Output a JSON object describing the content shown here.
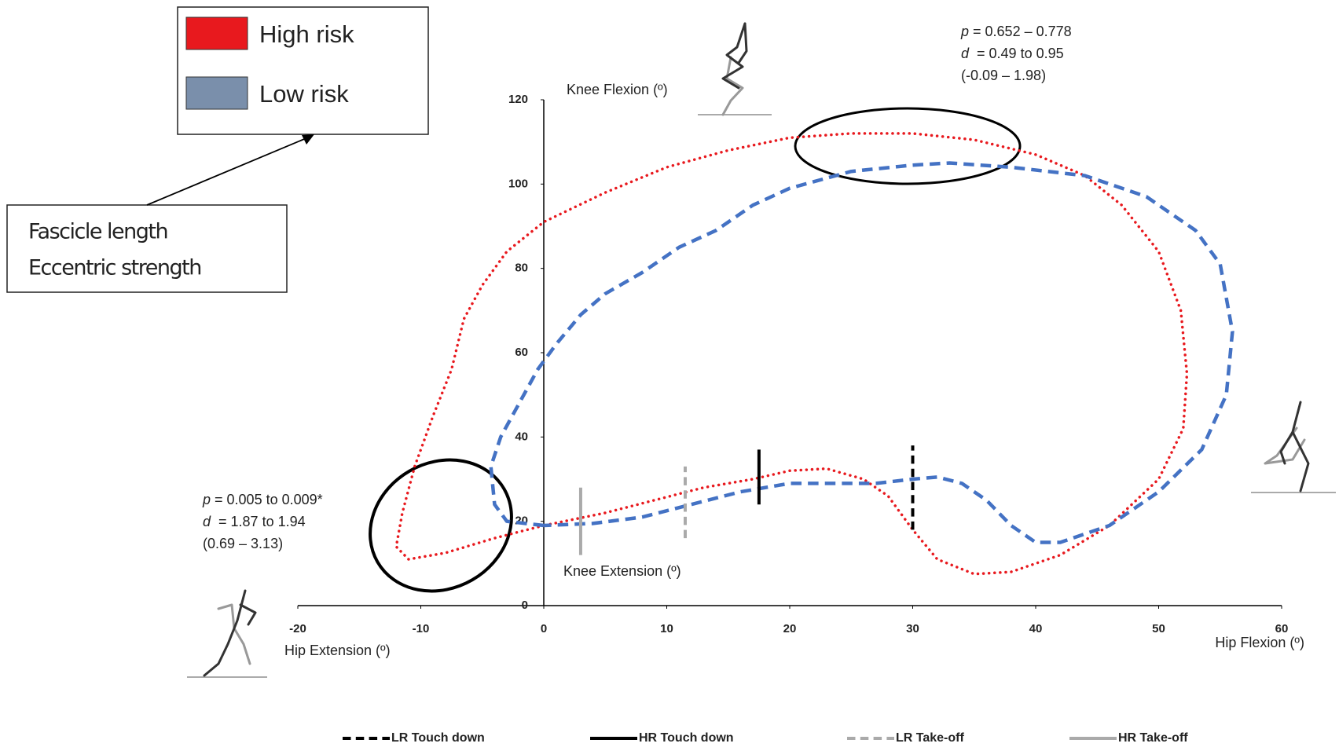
{
  "chart_data": {
    "type": "line",
    "xlim": [
      -20,
      60
    ],
    "xticks": [
      -20,
      -10,
      0,
      10,
      20,
      30,
      40,
      50,
      60
    ],
    "ylim": [
      0,
      120
    ],
    "yticks": [
      0,
      20,
      40,
      60,
      80,
      100,
      120
    ],
    "y_axis_label": "Knee Flexion (º)",
    "y_axis_label_bottom": "Knee Extension (º)",
    "x_axis_label_left": "Hip Extension (º)",
    "x_axis_label_right": "Hip Flexion (º)",
    "series": [
      {
        "name": "High risk",
        "color": "#e8191e",
        "style": "dotted",
        "x": [
          0,
          -4,
          -8,
          -11,
          -12,
          -11.5,
          -10.5,
          -9,
          -7.5,
          -6.5,
          -5,
          -3,
          0,
          5,
          10,
          15,
          20,
          25,
          30,
          35,
          40,
          44,
          47,
          50,
          51.8,
          52.3,
          52,
          50,
          46,
          42,
          38,
          35,
          32,
          30,
          28,
          26,
          23,
          20,
          17,
          13,
          9,
          5,
          0
        ],
        "y": [
          19,
          16,
          12.5,
          11,
          14,
          22,
          33,
          45,
          56,
          68,
          76,
          84,
          91,
          98,
          104,
          108,
          111,
          112,
          112,
          110.5,
          107,
          102,
          95,
          84,
          70,
          55,
          42,
          30,
          19,
          12,
          8,
          7.5,
          11,
          18,
          26,
          30,
          32.5,
          32,
          30,
          28,
          25,
          22,
          19
        ]
      },
      {
        "name": "Low risk",
        "color": "#4472c4",
        "style": "dashed",
        "x": [
          0,
          -3,
          -4,
          -4.3,
          -3.5,
          -2,
          -0.5,
          1,
          3,
          5,
          8,
          11,
          14,
          17,
          20,
          25,
          30,
          33,
          38,
          44,
          49,
          53,
          55,
          56,
          55.5,
          53.5,
          50,
          46,
          42,
          40,
          38,
          36,
          34,
          32,
          30,
          27,
          24,
          20,
          16,
          12,
          8,
          4,
          0
        ],
        "y": [
          19,
          20,
          24,
          33,
          40,
          48,
          56,
          62,
          69,
          74,
          79,
          85,
          89,
          95,
          99,
          103,
          104.5,
          105,
          104,
          102,
          97,
          89,
          81,
          65,
          50,
          37,
          27,
          19,
          15,
          15,
          19,
          25,
          29,
          30.5,
          30,
          29,
          29,
          29,
          27,
          24,
          21,
          19.5,
          19
        ]
      }
    ],
    "markers": [
      {
        "name": "LR Touch down",
        "color": "#000000",
        "style": "dashed",
        "x": 30,
        "y": [
          18,
          38
        ]
      },
      {
        "name": "HR Touch down",
        "color": "#000000",
        "style": "solid",
        "x": 17.5,
        "y": [
          24,
          37
        ]
      },
      {
        "name": "LR Take-off",
        "color": "#aaaaaa",
        "style": "dashed",
        "x": 11.5,
        "y": [
          16,
          33
        ]
      },
      {
        "name": "HR Take-off",
        "color": "#aaaaaa",
        "style": "solid",
        "x": 3,
        "y": [
          12,
          28
        ]
      }
    ],
    "annotations": [
      {
        "lines": [
          {
            "italic": "p",
            "text": " = 0.652 – 0.778"
          },
          {
            "italic": "d",
            "text": "  = 0.49 to 0.95"
          },
          {
            "italic": "",
            "text": "(-0.09 – 1.98)"
          }
        ]
      },
      {
        "lines": [
          {
            "italic": "p",
            "text": " = 0.005 to 0.009*"
          },
          {
            "italic": "d",
            "text": "  = 1.87 to 1.94"
          },
          {
            "italic": "",
            "text": "(0.69 – 3.13)"
          }
        ]
      }
    ],
    "note_box": [
      "Fascicle length",
      "Eccentric strength"
    ]
  }
}
